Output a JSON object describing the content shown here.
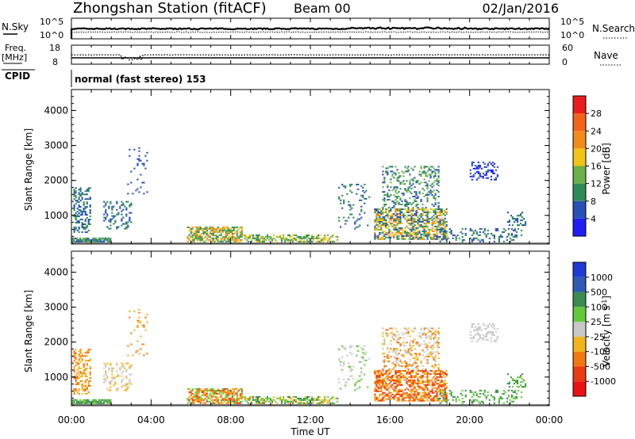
{
  "header": {
    "station": "Zhongshan Station (fitACF)",
    "beam": "Beam 00",
    "date": "02/Jan/2016"
  },
  "summary_panels": {
    "nsky": {
      "label": "N.Sky",
      "ticks": [
        "10^5",
        "10^0"
      ]
    },
    "nsearch": {
      "label": "N.Search",
      "ticks": [
        "10^5",
        "10^0"
      ]
    },
    "freq": {
      "label_top": "Freq.",
      "label_bottom": "[MHz]",
      "ticks": [
        "18",
        "8"
      ]
    },
    "nave": {
      "label": "Nave",
      "ticks": [
        "60",
        "0"
      ]
    },
    "cpid": {
      "label": "CPID",
      "value": "normal (fast stereo) 153"
    }
  },
  "chart_data": [
    {
      "type": "heatmap",
      "name": "power",
      "ylabel": "Slant Range [km]",
      "xlabel": "Time UT",
      "x_ticks": [
        "00:00",
        "04:00",
        "08:00",
        "12:00",
        "16:00",
        "20:00",
        "00:00"
      ],
      "y_ticks": [
        1000,
        2000,
        3000,
        4000
      ],
      "ylim": [
        180,
        4600
      ],
      "xlim_hours": [
        0,
        24
      ],
      "colorbar": {
        "label": "Power [dB]",
        "ticks": [
          "4",
          "8",
          "12",
          "16",
          "20",
          "24",
          "28"
        ],
        "colors": [
          "#1e1ef0",
          "#2850b4",
          "#2e8b57",
          "#6ab04c",
          "#f0c419",
          "#f08c1e",
          "#f0641e",
          "#e81e1e"
        ]
      }
    },
    {
      "type": "heatmap",
      "name": "velocity",
      "ylabel": "Slant Range [km]",
      "xlabel": "Time UT",
      "x_ticks": [
        "00:00",
        "04:00",
        "08:00",
        "12:00",
        "16:00",
        "20:00",
        "00:00"
      ],
      "y_ticks": [
        1000,
        2000,
        3000,
        4000
      ],
      "ylim": [
        180,
        4600
      ],
      "xlim_hours": [
        0,
        24
      ],
      "colorbar": {
        "label": "Velocity [m s^-1]",
        "ticks": [
          "1000",
          "500",
          "100",
          "25",
          "-25",
          "-100",
          "-500",
          "-1000"
        ],
        "colors": [
          "#1e3cd2",
          "#2e5ab4",
          "#3c8c50",
          "#64c83c",
          "#c8c8c8",
          "#f0b41e",
          "#f07814",
          "#e83c14",
          "#e81414"
        ]
      }
    }
  ],
  "axes": {
    "xlabel": "Time UT"
  }
}
